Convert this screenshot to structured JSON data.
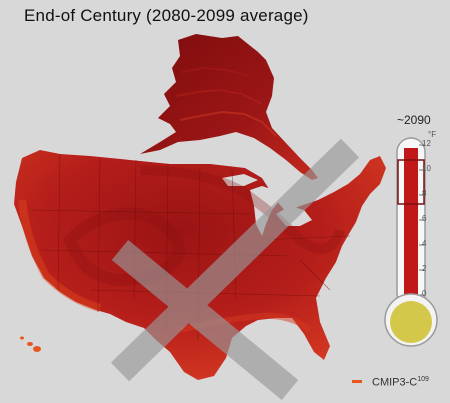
{
  "title": "End-of Century (2080-2099 average)",
  "thermometer": {
    "year": "~2090",
    "ticks": [
      "12",
      "10",
      "8",
      "6",
      "4",
      "2",
      "0"
    ],
    "unit": "°F"
  },
  "credit": {
    "text": "CMIP3-C",
    "superscript": "109"
  },
  "colors": {
    "background": "#d8d8d8",
    "dark_red": "#8e1010",
    "mid_red": "#b51e1a",
    "red": "#cc2a1e",
    "orange": "#e8561f",
    "watermark": "#9a9a9a",
    "bulb": "#d4c84a"
  }
}
